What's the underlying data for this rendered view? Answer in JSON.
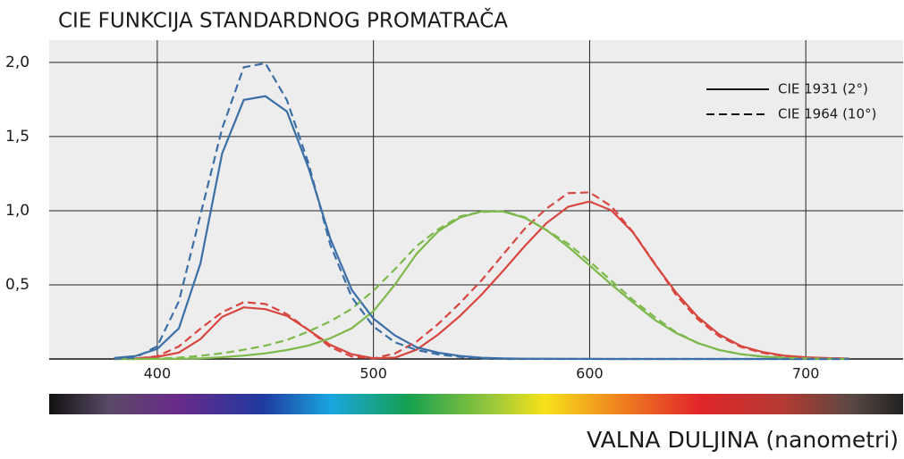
{
  "chart_data": {
    "type": "line",
    "title": "CIE FUNKCIJA STANDARDNOG PROMATRAČA",
    "x_label": "VALNA DULJINA (nanometri)",
    "xlim": [
      350,
      745
    ],
    "xticks": [
      400,
      500,
      600,
      700
    ],
    "ylim": [
      0,
      2.15
    ],
    "yticks": [
      {
        "value": 0.5,
        "label": "0,5"
      },
      {
        "value": 1.0,
        "label": "1,0"
      },
      {
        "value": 1.5,
        "label": "1,5"
      },
      {
        "value": 2.0,
        "label": "2,0"
      }
    ],
    "grid": true,
    "legend_position": "upper right",
    "legend": [
      {
        "name": "CIE 1931 (2°)",
        "style": "solid"
      },
      {
        "name": "CIE 1964 (10°)",
        "style": "dashed"
      }
    ],
    "x": [
      380,
      390,
      400,
      410,
      420,
      430,
      440,
      450,
      460,
      470,
      480,
      490,
      500,
      510,
      520,
      530,
      540,
      550,
      560,
      570,
      580,
      590,
      600,
      610,
      620,
      630,
      640,
      650,
      660,
      670,
      680,
      690,
      700,
      710,
      720
    ],
    "series": [
      {
        "color": "#d8463f",
        "style": "solid",
        "values": [
          0.0014,
          0.0042,
          0.0143,
          0.0435,
          0.1344,
          0.2839,
          0.3483,
          0.3362,
          0.2908,
          0.1954,
          0.0956,
          0.032,
          0.0049,
          0.0093,
          0.0633,
          0.1655,
          0.2904,
          0.4334,
          0.5945,
          0.7621,
          0.9163,
          1.0263,
          1.0622,
          1.0026,
          0.8544,
          0.6424,
          0.4479,
          0.2835,
          0.1649,
          0.0874,
          0.0468,
          0.0227,
          0.0114,
          0.0058,
          0.0029
        ]
      },
      {
        "color": "#7cb84a",
        "style": "solid",
        "values": [
          0,
          0.0001,
          0.0004,
          0.0012,
          0.004,
          0.0116,
          0.023,
          0.038,
          0.06,
          0.091,
          0.139,
          0.208,
          0.323,
          0.503,
          0.71,
          0.862,
          0.954,
          0.995,
          0.995,
          0.952,
          0.87,
          0.757,
          0.631,
          0.503,
          0.381,
          0.265,
          0.175,
          0.107,
          0.061,
          0.032,
          0.017,
          0.0082,
          0.0041,
          0.0021,
          0.001
        ]
      },
      {
        "color": "#3b6fa6",
        "style": "solid",
        "values": [
          0.0065,
          0.0201,
          0.0679,
          0.2074,
          0.6456,
          1.3856,
          1.7471,
          1.7721,
          1.6692,
          1.2876,
          0.813,
          0.4652,
          0.272,
          0.1582,
          0.0782,
          0.0422,
          0.0203,
          0.0087,
          0.0039,
          0.0021,
          0.0017,
          0.0011,
          0.0008,
          0.0003,
          0.0002,
          0,
          0,
          0,
          0,
          0,
          0,
          0,
          0,
          0,
          0
        ]
      },
      {
        "color": "#d8463f",
        "style": "dashed",
        "values": [
          0.0002,
          0.0024,
          0.0191,
          0.0847,
          0.2045,
          0.3147,
          0.3837,
          0.3707,
          0.3023,
          0.1956,
          0.0805,
          0.0162,
          0.0038,
          0.0375,
          0.1177,
          0.2365,
          0.3768,
          0.5298,
          0.7052,
          0.8787,
          1.0142,
          1.1185,
          1.124,
          1.0305,
          0.8563,
          0.6475,
          0.4316,
          0.2683,
          0.1526,
          0.0813,
          0.0409,
          0.0199,
          0.0096,
          0.0046,
          0.0022
        ]
      },
      {
        "color": "#7cb84a",
        "style": "dashed",
        "values": [
          0,
          0.0003,
          0.002,
          0.0088,
          0.0214,
          0.0387,
          0.0621,
          0.0895,
          0.1282,
          0.1852,
          0.2536,
          0.3391,
          0.4608,
          0.6067,
          0.7618,
          0.8752,
          0.962,
          0.9918,
          0.9973,
          0.9556,
          0.8689,
          0.7774,
          0.6583,
          0.528,
          0.3981,
          0.2835,
          0.1798,
          0.1076,
          0.0603,
          0.0318,
          0.0159,
          0.0077,
          0.0037,
          0.0018,
          0.0008
        ]
      },
      {
        "color": "#3b6fa6",
        "style": "dashed",
        "values": [
          0.0007,
          0.0105,
          0.086,
          0.3894,
          0.9725,
          1.5535,
          1.9673,
          1.9948,
          1.7454,
          1.3176,
          0.7721,
          0.4153,
          0.2185,
          0.112,
          0.0607,
          0.0305,
          0.0137,
          0.004,
          0,
          0,
          0,
          0,
          0,
          0,
          0,
          0,
          0,
          0,
          0,
          0,
          0,
          0,
          0,
          0,
          0
        ]
      }
    ]
  }
}
